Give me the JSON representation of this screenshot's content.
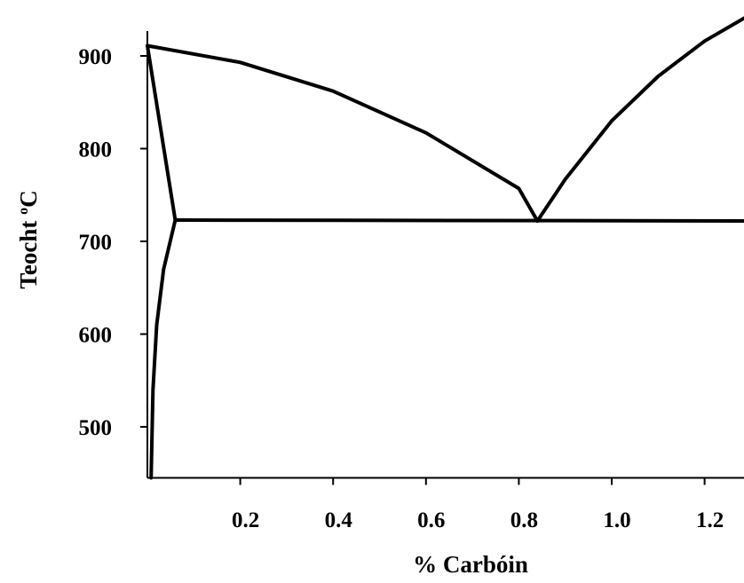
{
  "chart_data": {
    "type": "line",
    "title": "",
    "xlabel": "% Carbóin",
    "ylabel_parts": {
      "prefix": "Teocht ",
      "superscript": "o",
      "suffix": "C"
    },
    "xlim": [
      0,
      1.3
    ],
    "ylim": [
      445,
      950
    ],
    "x_ticks": [
      0.2,
      0.4,
      0.6,
      0.8,
      1.0,
      1.2
    ],
    "x_tick_labels": [
      "0.2",
      "0.4",
      "0.6",
      "0.8",
      "1.0",
      "1.2"
    ],
    "y_ticks": [
      500,
      600,
      700,
      800,
      900
    ],
    "y_tick_labels": [
      "500",
      "600",
      "700",
      "800",
      "900"
    ],
    "grid": false,
    "legend": "none",
    "series": [
      {
        "x": [
          0.0,
          0.2,
          0.4,
          0.6,
          0.8,
          0.84
        ],
        "y": [
          911,
          893,
          862,
          817,
          757,
          722
        ]
      },
      {
        "x": [
          0.84,
          0.9,
          1.0,
          1.1,
          1.2,
          1.3
        ],
        "y": [
          722,
          767,
          830,
          878,
          916,
          945
        ]
      },
      {
        "x": [
          0.06,
          1.3
        ],
        "y": [
          723,
          722
        ]
      },
      {
        "x": [
          0.0,
          0.06
        ],
        "y": [
          911,
          723
        ]
      },
      {
        "x": [
          0.06,
          0.035,
          0.02,
          0.012,
          0.008
        ],
        "y": [
          723,
          670,
          610,
          540,
          445
        ]
      }
    ]
  }
}
